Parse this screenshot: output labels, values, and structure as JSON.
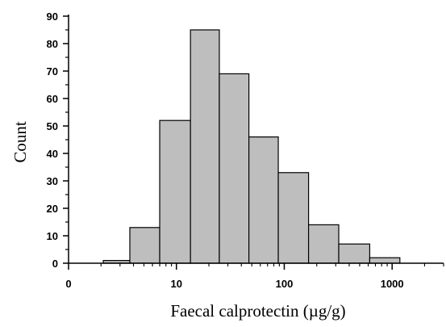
{
  "chart_data": {
    "type": "bar",
    "xlabel": "Faecal calprotectin (µg/g)",
    "ylabel": "Count",
    "x_scale": "log",
    "xlim": [
      1,
      3000
    ],
    "ylim": [
      0,
      90
    ],
    "x_ticks": [
      {
        "value": 1,
        "label": "0"
      },
      {
        "value": 10,
        "label": "10"
      },
      {
        "value": 100,
        "label": "100"
      },
      {
        "value": 1000,
        "label": "1000"
      }
    ],
    "y_ticks": [
      0,
      10,
      20,
      30,
      40,
      50,
      60,
      70,
      80,
      90
    ],
    "bins": [
      {
        "x0": 2.1,
        "x1": 3.7,
        "value": 1
      },
      {
        "x0": 3.7,
        "x1": 7.0,
        "value": 13
      },
      {
        "x0": 7.0,
        "x1": 13.5,
        "value": 52
      },
      {
        "x0": 13.5,
        "x1": 25,
        "value": 85
      },
      {
        "x0": 25,
        "x1": 47,
        "value": 69
      },
      {
        "x0": 47,
        "x1": 88,
        "value": 46
      },
      {
        "x0": 88,
        "x1": 168,
        "value": 33
      },
      {
        "x0": 168,
        "x1": 320,
        "value": 14
      },
      {
        "x0": 320,
        "x1": 620,
        "value": 7
      },
      {
        "x0": 620,
        "x1": 1180,
        "value": 2
      }
    ],
    "bar_color": "#bebebe",
    "edge_color": "#000000",
    "grid": false,
    "legend": "none"
  }
}
